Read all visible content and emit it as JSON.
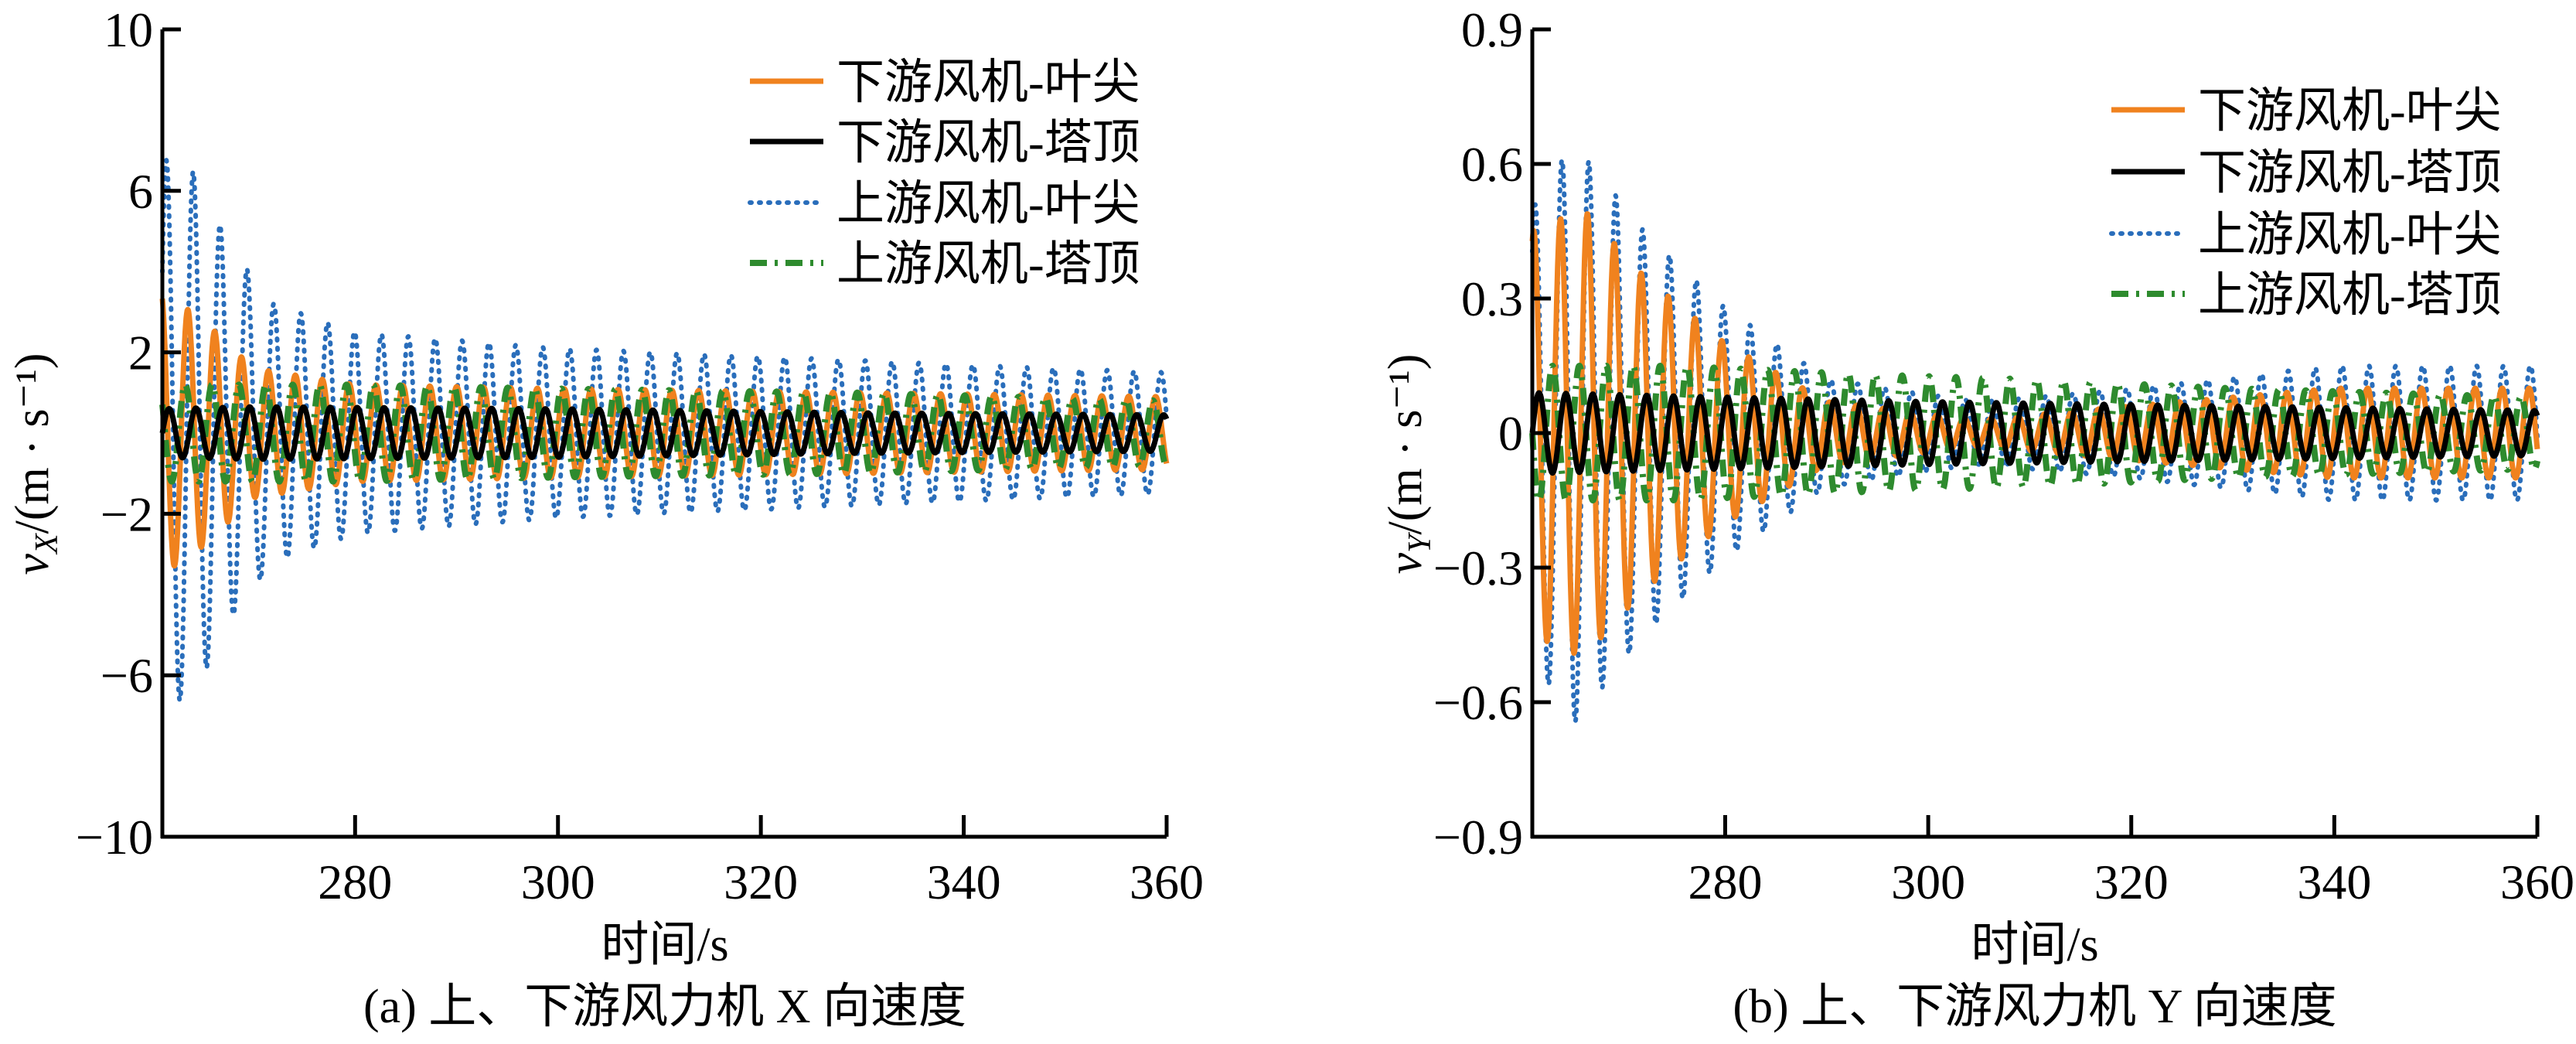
{
  "chart_data": [
    {
      "type": "line",
      "caption": "(a)  上、下游风力机 X 向速度",
      "xlabel": "时间/s",
      "ylabel_var": "v",
      "ylabel_sub": "X",
      "ylabel_unit": "/(m · s⁻¹)",
      "xlim": [
        261,
        360
      ],
      "ylim": [
        -10,
        10
      ],
      "xticks": [
        280,
        300,
        320,
        340,
        360
      ],
      "xtick_labels": [
        "280",
        "300",
        "320",
        "340",
        "360"
      ],
      "yticks": [
        -10,
        -6,
        -2,
        2,
        6,
        10
      ],
      "ytick_labels": [
        "−10",
        "−6",
        "−2",
        "2",
        "6",
        "10"
      ],
      "legend_position": "top-right",
      "period_s": 2.65,
      "series": [
        {
          "name": "下游风机-叶尖",
          "color": "#F0821E",
          "style": "solid",
          "phase": 0.3,
          "offset": 0.0,
          "envelope": [
            [
              261,
              3.5
            ],
            [
              265,
              2.8
            ],
            [
              270,
              1.6
            ],
            [
              280,
              1.2
            ],
            [
              300,
              1.1
            ],
            [
              330,
              1.0
            ],
            [
              360,
              0.9
            ]
          ]
        },
        {
          "name": "下游风机-塔顶",
          "color": "#000000",
          "style": "solid",
          "phase": 0.0,
          "offset": 0.0,
          "envelope": [
            [
              261,
              0.6
            ],
            [
              270,
              0.65
            ],
            [
              300,
              0.6
            ],
            [
              330,
              0.5
            ],
            [
              360,
              0.45
            ]
          ]
        },
        {
          "name": "上游风机-叶尖",
          "color": "#2A6EBB",
          "style": "dotted",
          "phase": 0.1,
          "offset": 0.0,
          "envelope": [
            [
              261,
              6.8
            ],
            [
              264,
              6.5
            ],
            [
              268,
              4.5
            ],
            [
              272,
              3.2
            ],
            [
              280,
              2.5
            ],
            [
              300,
              2.1
            ],
            [
              330,
              1.8
            ],
            [
              360,
              1.5
            ]
          ]
        },
        {
          "name": "上游风机-塔顶",
          "color": "#2E8B2E",
          "style": "dashdot",
          "phase": 0.4,
          "offset": 0.0,
          "envelope": [
            [
              261,
              1.2
            ],
            [
              280,
              1.2
            ],
            [
              300,
              1.1
            ],
            [
              330,
              1.0
            ],
            [
              360,
              0.8
            ]
          ]
        }
      ]
    },
    {
      "type": "line",
      "caption": "(b)  上、下游风力机 Y 向速度",
      "xlabel": "时间/s",
      "ylabel_var": "v",
      "ylabel_sub": "Y",
      "ylabel_unit": "/(m · s⁻¹)",
      "xlim": [
        261,
        360
      ],
      "ylim": [
        -0.9,
        0.9
      ],
      "xticks": [
        280,
        300,
        320,
        340,
        360
      ],
      "xtick_labels": [
        "280",
        "300",
        "320",
        "340",
        "360"
      ],
      "yticks": [
        -0.9,
        -0.6,
        -0.3,
        0,
        0.3,
        0.6,
        0.9
      ],
      "ytick_labels": [
        "−0.9",
        "−0.6",
        "−0.3",
        "0",
        "0.3",
        "0.6",
        "0.9"
      ],
      "legend_position": "top-right",
      "period_s": 2.65,
      "series": [
        {
          "name": "下游风机-叶尖",
          "color": "#F0821E",
          "style": "solid",
          "phase": 0.2,
          "offset": 0.0,
          "envelope": [
            [
              261,
              0.45
            ],
            [
              266,
              0.5
            ],
            [
              272,
              0.35
            ],
            [
              280,
              0.2
            ],
            [
              290,
              0.07
            ],
            [
              305,
              0.03
            ],
            [
              320,
              0.06
            ],
            [
              340,
              0.1
            ],
            [
              360,
              0.1
            ]
          ]
        },
        {
          "name": "下游风机-塔顶",
          "color": "#000000",
          "style": "solid",
          "phase": 0.0,
          "offset": 0.0,
          "envelope": [
            [
              261,
              0.09
            ],
            [
              280,
              0.08
            ],
            [
              300,
              0.07
            ],
            [
              330,
              0.06
            ],
            [
              360,
              0.05
            ]
          ]
        },
        {
          "name": "上游风机-叶尖",
          "color": "#2A6EBB",
          "style": "dotted",
          "phase": 0.15,
          "offset": 0.0,
          "envelope": [
            [
              261,
              0.5
            ],
            [
              265,
              0.65
            ],
            [
              272,
              0.45
            ],
            [
              280,
              0.28
            ],
            [
              290,
              0.12
            ],
            [
              305,
              0.07
            ],
            [
              320,
              0.1
            ],
            [
              340,
              0.15
            ],
            [
              360,
              0.15
            ]
          ]
        },
        {
          "name": "上游风机-塔顶",
          "color": "#2E8B2E",
          "style": "dashdot",
          "phase": 0.5,
          "offset": 0.0,
          "envelope": [
            [
              261,
              0.15
            ],
            [
              275,
              0.15
            ],
            [
              295,
              0.13
            ],
            [
              310,
              0.12
            ],
            [
              330,
              0.1
            ],
            [
              360,
              0.08
            ]
          ]
        }
      ]
    }
  ]
}
